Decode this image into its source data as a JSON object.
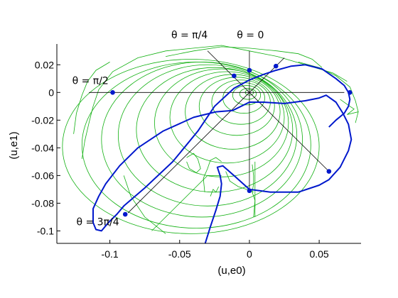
{
  "chart_data": {
    "type": "line",
    "title": "",
    "xlabel": "(u,e0)",
    "ylabel": "(u,e1)",
    "xlim": [
      -0.138,
      0.08
    ],
    "ylim": [
      -0.109,
      0.035
    ],
    "xticks": [
      -0.1,
      -0.05,
      0,
      0.05
    ],
    "xtick_labels": [
      "-0.1",
      "-0.05",
      "0",
      "0.05"
    ],
    "yticks": [
      0.02,
      0,
      -0.02,
      -0.04,
      -0.06,
      -0.08,
      -0.1
    ],
    "ytick_labels": [
      "0.02",
      "0",
      "-0.02",
      "-0.04",
      "-0.06",
      "-0.08",
      "-0.1"
    ],
    "grid": false,
    "colors": {
      "boundary": "#0018cc",
      "field": "#10b010",
      "rays": "#000000",
      "background": "#ffffff"
    },
    "boundary": {
      "x": [
        -0.032,
        -0.028,
        -0.024,
        -0.021,
        -0.02,
        -0.021,
        -0.023,
        -0.019,
        -0.01,
        0.0,
        0.015,
        0.035,
        0.05,
        0.057,
        0.065,
        0.071,
        0.073,
        0.071,
        0.067,
        0.062,
        0.055,
        0.05,
        0.04,
        0.025,
        0.01,
        0.0,
        -0.012,
        -0.024,
        -0.04,
        -0.062,
        -0.08,
        -0.093,
        -0.103,
        -0.108,
        -0.112,
        -0.112,
        -0.11,
        -0.106,
        -0.101,
        -0.095,
        -0.09,
        -0.075,
        -0.055,
        -0.037,
        -0.025,
        -0.011,
        0.0,
        0.01,
        0.019,
        0.03,
        0.04,
        0.052,
        0.062,
        0.068,
        0.071,
        0.072,
        0.071,
        0.068,
        0.062,
        0.057
      ],
      "y": [
        -0.11,
        -0.097,
        -0.085,
        -0.075,
        -0.066,
        -0.06,
        -0.054,
        -0.053,
        -0.061,
        -0.07,
        -0.072,
        -0.072,
        -0.067,
        -0.063,
        -0.054,
        -0.042,
        -0.034,
        -0.023,
        -0.015,
        -0.007,
        -0.002,
        -0.004,
        -0.006,
        -0.008,
        -0.007,
        -0.007,
        -0.013,
        -0.014,
        -0.018,
        -0.028,
        -0.04,
        -0.053,
        -0.066,
        -0.075,
        -0.084,
        -0.094,
        -0.099,
        -0.1,
        -0.094,
        -0.088,
        -0.082,
        -0.069,
        -0.05,
        -0.028,
        -0.01,
        0.003,
        0.009,
        0.013,
        0.016,
        0.019,
        0.02,
        0.017,
        0.01,
        0.005,
        0.0,
        -0.005,
        -0.01,
        -0.015,
        -0.02,
        -0.025
      ]
    },
    "boundary_markers": {
      "x": [
        -0.098,
        -0.011,
        0.0,
        0.019,
        0.072,
        0.057,
        0.0,
        -0.089
      ],
      "y": [
        0.0,
        0.012,
        0.016,
        0.019,
        0.0,
        -0.057,
        -0.071,
        -0.088
      ]
    },
    "rays": [
      {
        "from": [
          0.0,
          0.0
        ],
        "to": [
          -0.115,
          0.0
        ]
      },
      {
        "from": [
          0.0,
          0.0
        ],
        "to": [
          0.0,
          0.03
        ]
      },
      {
        "from": [
          0.0,
          0.0
        ],
        "to": [
          -0.03,
          0.03
        ]
      },
      {
        "from": [
          0.0,
          0.0
        ],
        "to": [
          0.025,
          0.025
        ]
      },
      {
        "from": [
          0.0,
          0.0
        ],
        "to": [
          0.068,
          0.0
        ]
      },
      {
        "from": [
          0.0,
          0.0
        ],
        "to": [
          0.058,
          -0.058
        ]
      },
      {
        "from": [
          0.0,
          0.0
        ],
        "to": [
          0.0,
          -0.072
        ]
      },
      {
        "from": [
          0.0,
          0.0
        ],
        "to": [
          -0.087,
          -0.087
        ]
      }
    ],
    "annotations": [
      {
        "text": "θ = π/4",
        "x": -0.056,
        "y": 0.039
      },
      {
        "text": "θ = 0",
        "x": -0.009,
        "y": 0.039
      },
      {
        "text": "θ = π/2",
        "x": -0.127,
        "y": 0.006
      },
      {
        "text": "θ = 3π/4",
        "x": -0.124,
        "y": -0.096
      }
    ],
    "field_curves": {
      "ellipses": [
        {
          "cx": 0.0,
          "cy": 0.0,
          "rx": 0.003,
          "ry": 0.002
        },
        {
          "cx": -0.001,
          "cy": -0.001,
          "rx": 0.006,
          "ry": 0.004
        },
        {
          "cx": -0.002,
          "cy": -0.002,
          "rx": 0.01,
          "ry": 0.007
        },
        {
          "cx": -0.004,
          "cy": -0.004,
          "rx": 0.015,
          "ry": 0.011
        },
        {
          "cx": -0.006,
          "cy": -0.007,
          "rx": 0.021,
          "ry": 0.016
        },
        {
          "cx": -0.009,
          "cy": -0.01,
          "rx": 0.027,
          "ry": 0.021
        },
        {
          "cx": -0.012,
          "cy": -0.014,
          "rx": 0.034,
          "ry": 0.027
        },
        {
          "cx": -0.016,
          "cy": -0.018,
          "rx": 0.041,
          "ry": 0.033
        },
        {
          "cx": -0.02,
          "cy": -0.022,
          "rx": 0.048,
          "ry": 0.039
        },
        {
          "cx": -0.025,
          "cy": -0.027,
          "rx": 0.056,
          "ry": 0.045
        },
        {
          "cx": -0.03,
          "cy": -0.031,
          "rx": 0.064,
          "ry": 0.051
        },
        {
          "cx": -0.034,
          "cy": -0.034,
          "rx": 0.072,
          "ry": 0.056
        },
        {
          "cx": -0.038,
          "cy": -0.038,
          "rx": 0.082,
          "ry": 0.06
        },
        {
          "cx": -0.042,
          "cy": -0.039,
          "rx": 0.092,
          "ry": 0.063
        }
      ],
      "paths": [
        {
          "x": [
            -0.12,
            -0.118,
            -0.115,
            -0.112,
            -0.108,
            -0.098,
            -0.08,
            -0.06,
            -0.04,
            -0.02,
            0.0,
            0.02,
            0.04,
            0.06,
            0.07
          ],
          "y": [
            -0.048,
            -0.035,
            -0.022,
            -0.01,
            0.002,
            0.015,
            0.025,
            0.03,
            0.032,
            0.034,
            0.03,
            0.026,
            0.02,
            0.014,
            0.008
          ]
        },
        {
          "x": [
            -0.126,
            -0.124,
            -0.12,
            -0.116,
            -0.11,
            -0.1
          ],
          "y": [
            -0.03,
            -0.015,
            -0.002,
            0.008,
            0.016,
            0.022
          ]
        },
        {
          "x": [
            -0.06,
            -0.04,
            -0.02,
            0.0,
            0.02,
            0.035,
            0.045,
            0.052
          ],
          "y": [
            0.026,
            0.03,
            0.033,
            0.032,
            0.03,
            0.028,
            0.024,
            0.018
          ]
        },
        {
          "x": [
            0.035,
            0.05,
            0.062,
            0.072,
            0.076,
            0.078
          ],
          "y": [
            0.022,
            0.018,
            0.012,
            0.004,
            -0.006,
            -0.014
          ]
        },
        {
          "x": [
            0.065,
            0.072,
            0.075,
            0.07,
            0.078,
            0.076
          ],
          "y": [
            -0.005,
            -0.01,
            -0.012,
            -0.016,
            -0.014,
            -0.022
          ]
        },
        {
          "x": [
            -0.032,
            -0.033,
            -0.03,
            -0.028,
            -0.024,
            -0.02
          ],
          "y": [
            -0.072,
            -0.062,
            -0.055,
            -0.049,
            -0.047,
            -0.05
          ]
        },
        {
          "x": [
            -0.045,
            -0.04,
            -0.037,
            -0.035,
            -0.038,
            -0.043,
            -0.045
          ],
          "y": [
            -0.047,
            -0.044,
            -0.048,
            -0.055,
            -0.058,
            -0.055,
            -0.05
          ]
        },
        {
          "x": [
            -0.017,
            -0.014,
            -0.008,
            -0.002,
            0.003
          ],
          "y": [
            -0.057,
            -0.064,
            -0.068,
            -0.07,
            -0.072
          ]
        },
        {
          "x": [
            0.002,
            0.003,
            0.003,
            0.002,
            0.004,
            0.003
          ],
          "y": [
            -0.052,
            -0.06,
            -0.066,
            -0.072,
            -0.078,
            -0.09
          ]
        },
        {
          "x": [
            0.004,
            0.004,
            0.004,
            0.004
          ],
          "y": [
            -0.05,
            -0.06,
            -0.075,
            -0.09
          ]
        },
        {
          "x": [
            -0.07,
            -0.06,
            -0.05,
            -0.04,
            -0.03,
            -0.02
          ],
          "y": [
            -0.1,
            -0.09,
            -0.08,
            -0.07,
            -0.06,
            -0.06
          ]
        },
        {
          "x": [
            -0.09,
            -0.085,
            -0.075,
            -0.06
          ],
          "y": [
            -0.06,
            -0.075,
            -0.09,
            -0.102
          ]
        },
        {
          "x": [
            -0.028,
            -0.026,
            -0.024,
            -0.022
          ],
          "y": [
            -0.075,
            -0.07,
            -0.072,
            -0.068
          ]
        }
      ]
    }
  }
}
